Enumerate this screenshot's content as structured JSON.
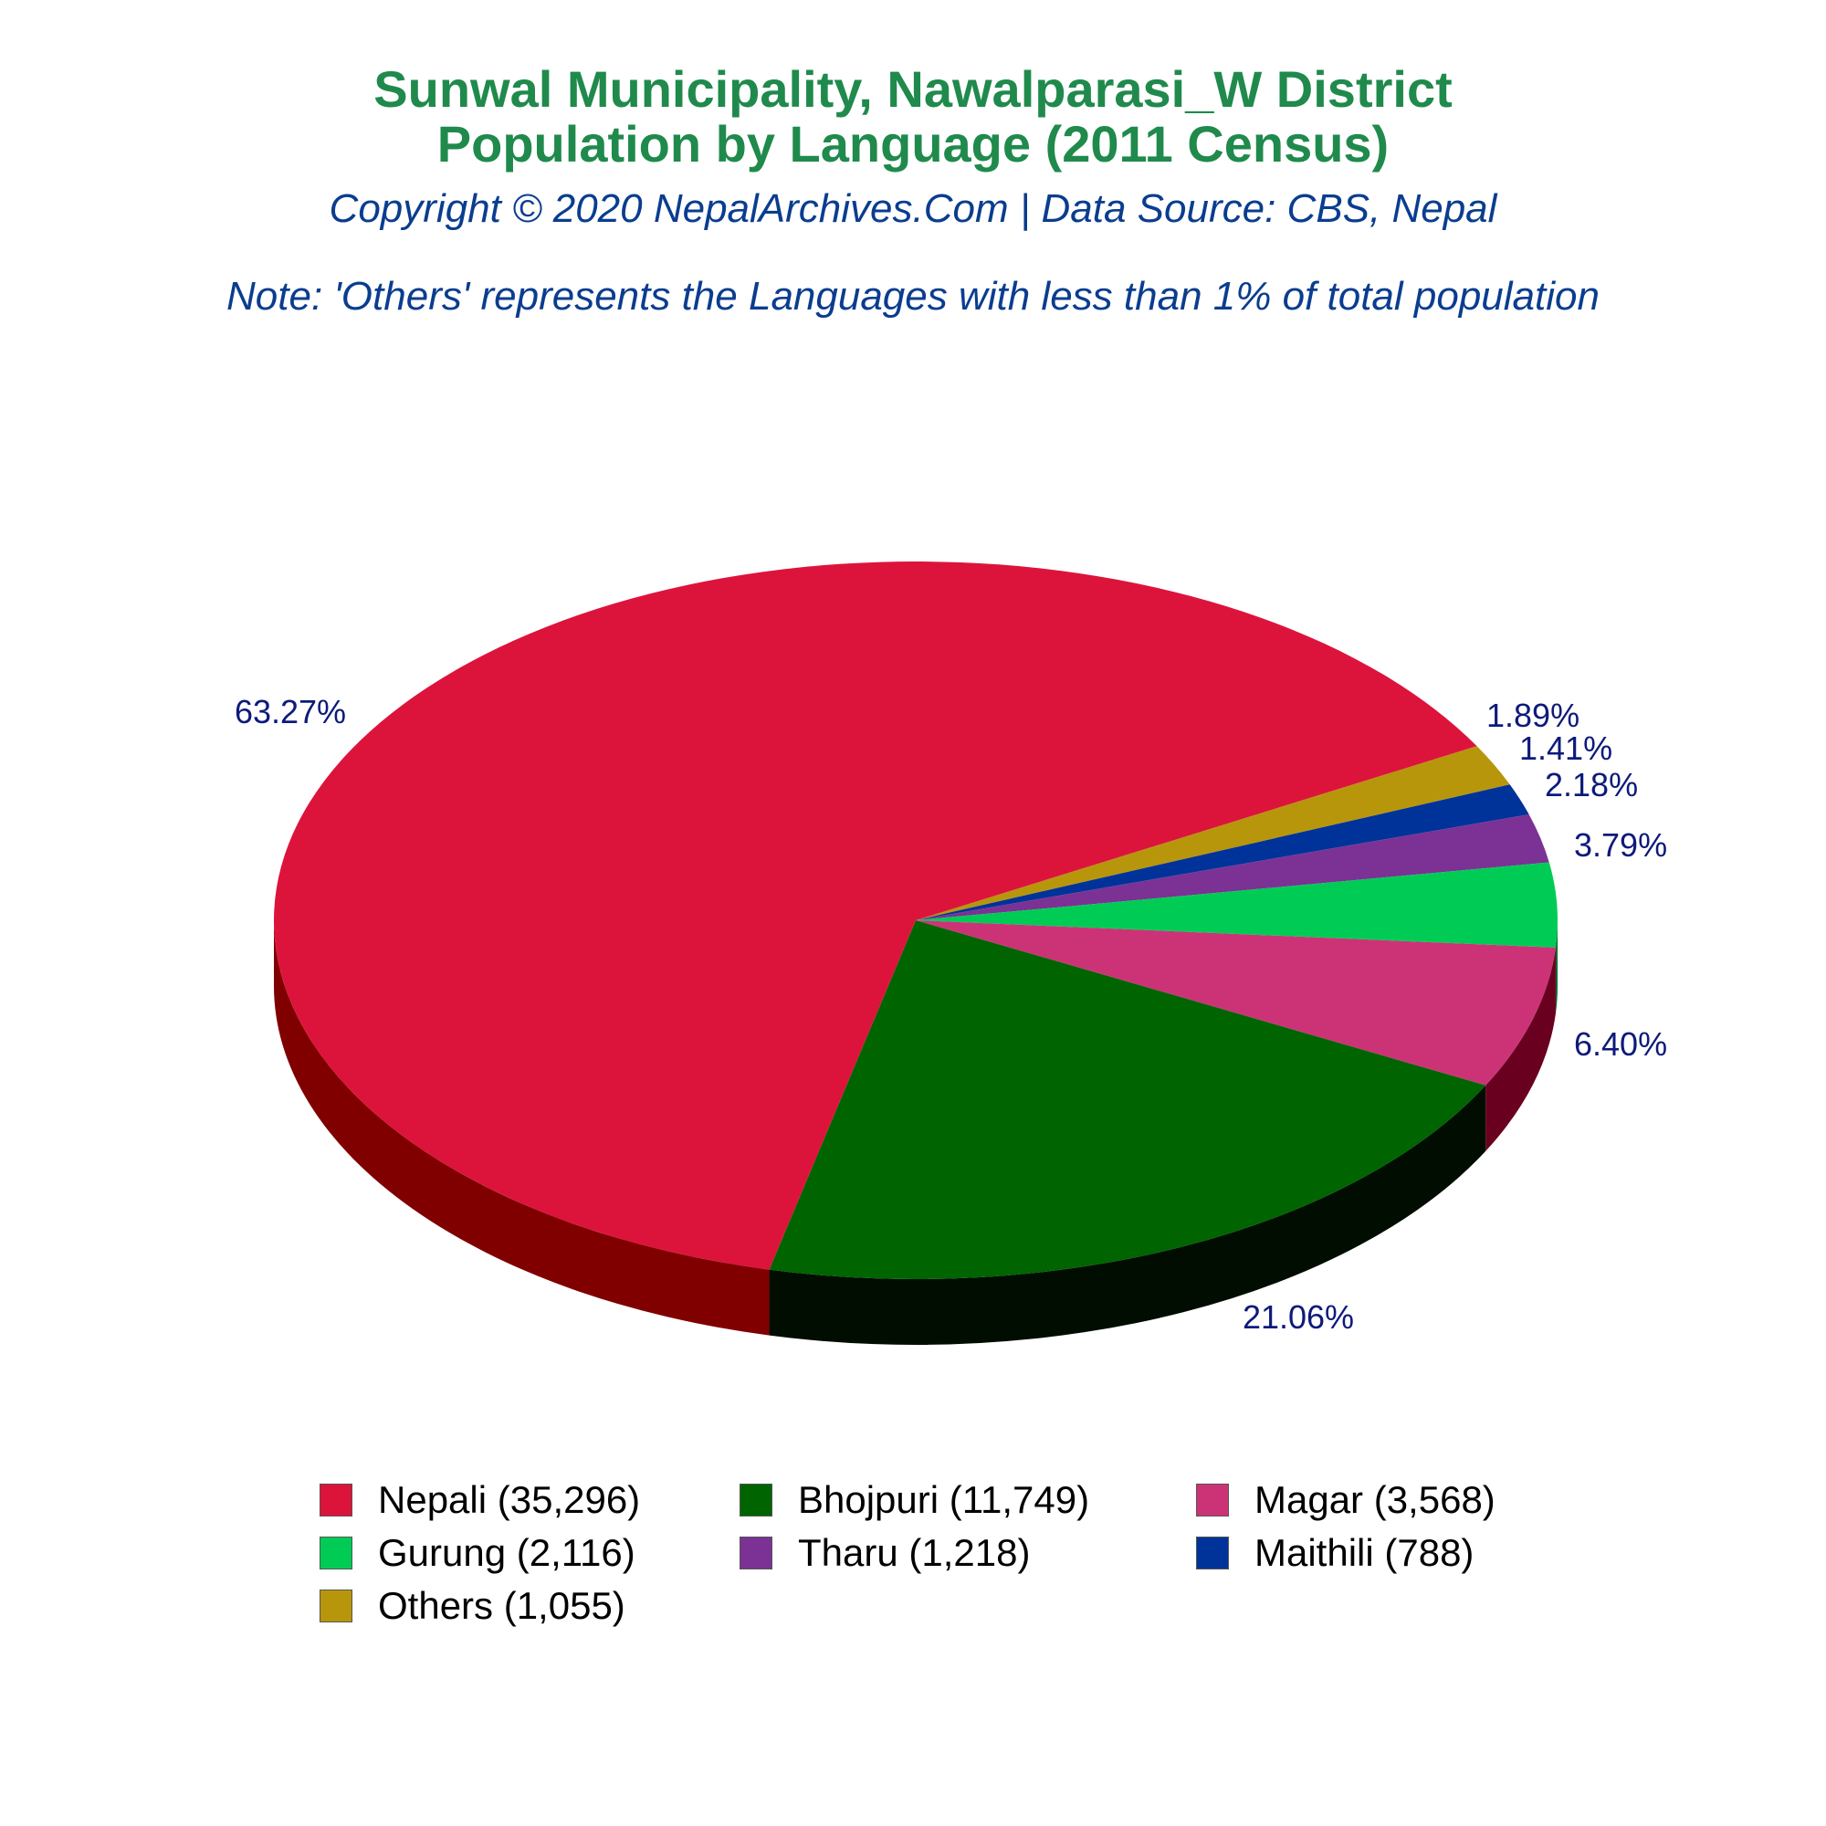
{
  "header": {
    "title_line1": "Sunwal Municipality, Nawalparasi_W District",
    "title_line2": "Population by Language (2011 Census)",
    "subtitle": "Copyright © 2020 NepalArchives.Com | Data Source: CBS, Nepal",
    "note": "Note: 'Others' represents the Languages with less than 1% of total population"
  },
  "chart_data": {
    "type": "pie",
    "title": "Sunwal Municipality, Nawalparasi_W District Population by Language (2011 Census)",
    "style": "3d",
    "legend_position": "bottom",
    "categories": [
      "Nepali",
      "Bhojpuri",
      "Magar",
      "Gurung",
      "Tharu",
      "Maithili",
      "Others"
    ],
    "values": [
      35296,
      11749,
      3568,
      2116,
      1218,
      788,
      1055
    ],
    "percent_labels": [
      "63.27%",
      "21.06%",
      "6.40%",
      "3.79%",
      "2.18%",
      "1.41%",
      "1.89%"
    ],
    "legend_labels": [
      "Nepali (35,296)",
      "Bhojpuri (11,749)",
      "Magar (3,568)",
      "Gurung (2,116)",
      "Tharu (1,218)",
      "Maithili (788)",
      "Others (1,055)"
    ],
    "colors": [
      "#dc143c",
      "#006400",
      "#cc3377",
      "#00cc55",
      "#7b3294",
      "#003399",
      "#b8960c"
    ],
    "side_colors": [
      "#800000",
      "#000d00",
      "#6a0020",
      "#006b2d",
      "#3d1450",
      "#001a52",
      "#5c4a06"
    ]
  }
}
